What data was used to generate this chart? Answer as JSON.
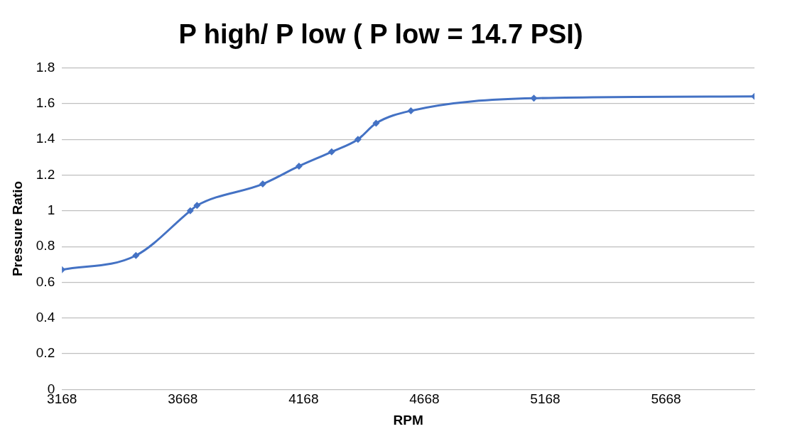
{
  "chart_data": {
    "type": "line",
    "title": "P high/ P low ( P low = 14.7 PSI)",
    "xlabel": "RPM",
    "ylabel": "Pressure Ratio",
    "x": [
      3168,
      3474,
      3699,
      3727,
      3999,
      4149,
      4284,
      4393,
      4468,
      4612,
      5121,
      6034
    ],
    "series": [
      {
        "color": "#4472c4",
        "values": [
          0.67,
          0.75,
          1.0,
          1.03,
          1.15,
          1.25,
          1.33,
          1.4,
          1.49,
          1.56,
          1.63,
          1.64
        ]
      }
    ],
    "xlim": [
      3168,
      6034
    ],
    "xticks": [
      3168,
      3668,
      4168,
      4668,
      5168,
      5668
    ],
    "ylim": [
      0,
      1.8
    ],
    "yticks": [
      0,
      0.2,
      0.4,
      0.6,
      0.8,
      1,
      1.2,
      1.4,
      1.6,
      1.8
    ],
    "grid": "y",
    "legend": false,
    "marker": "diamond",
    "line_style": "solid"
  }
}
